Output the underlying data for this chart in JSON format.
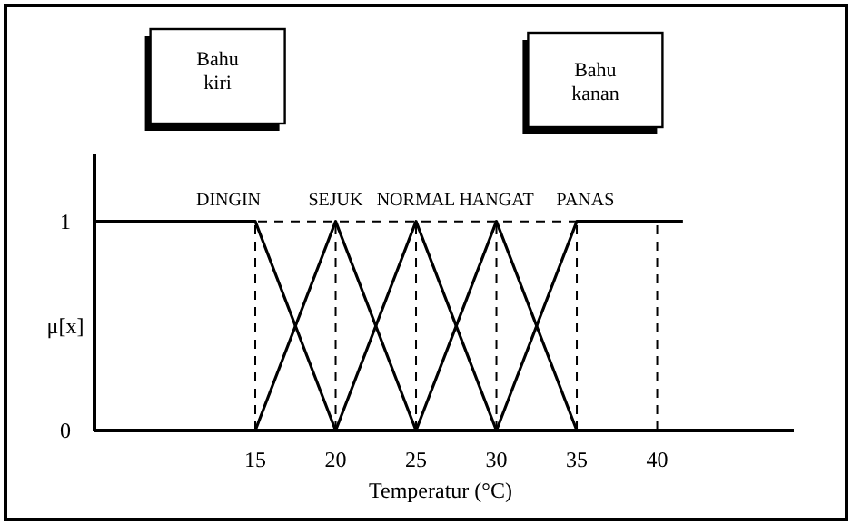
{
  "chart_data": {
    "type": "line",
    "xlabel": "Temperatur (°C)",
    "ylabel": "μ[x]",
    "xlim": [
      5,
      48.5
    ],
    "xticks": [
      15,
      20,
      25,
      30,
      35,
      40
    ],
    "ylim": [
      0,
      1.32
    ],
    "yticks": [
      0,
      1
    ],
    "series": [
      {
        "name": "DINGIN",
        "color": "#000000",
        "x": [
          5,
          15,
          20
        ],
        "values": [
          1,
          1,
          0
        ]
      },
      {
        "name": "SEJUK",
        "color": "#000000",
        "x": [
          15,
          20,
          25
        ],
        "values": [
          0,
          1,
          0
        ]
      },
      {
        "name": "NORMAL",
        "color": "#000000",
        "x": [
          20,
          25,
          30
        ],
        "values": [
          0,
          1,
          0
        ]
      },
      {
        "name": "HANGAT",
        "color": "#000000",
        "x": [
          25,
          30,
          35
        ],
        "values": [
          0,
          1,
          0
        ]
      },
      {
        "name": "PANAS",
        "color": "#000000",
        "x": [
          30,
          35,
          41.6
        ],
        "values": [
          0,
          1,
          1
        ]
      }
    ],
    "ref_lines": [
      {
        "axis": "y",
        "value": 1,
        "line_style": "dashed",
        "color": "#000000"
      },
      {
        "axis": "x",
        "value": 15,
        "line_style": "dashed",
        "color": "#000000"
      },
      {
        "axis": "x",
        "value": 20,
        "line_style": "dashed",
        "color": "#000000"
      },
      {
        "axis": "x",
        "value": 25,
        "line_style": "dashed",
        "color": "#000000"
      },
      {
        "axis": "x",
        "value": 30,
        "line_style": "dashed",
        "color": "#000000"
      },
      {
        "axis": "x",
        "value": 35,
        "line_style": "dashed",
        "color": "#000000"
      },
      {
        "axis": "x",
        "value": 40,
        "line_style": "dashed",
        "color": "#000000"
      }
    ],
    "annotations": [
      "Bahu\nkiri",
      "Bahu\nkanan"
    ],
    "grid": false,
    "marker": "none",
    "line_style": "solid"
  }
}
